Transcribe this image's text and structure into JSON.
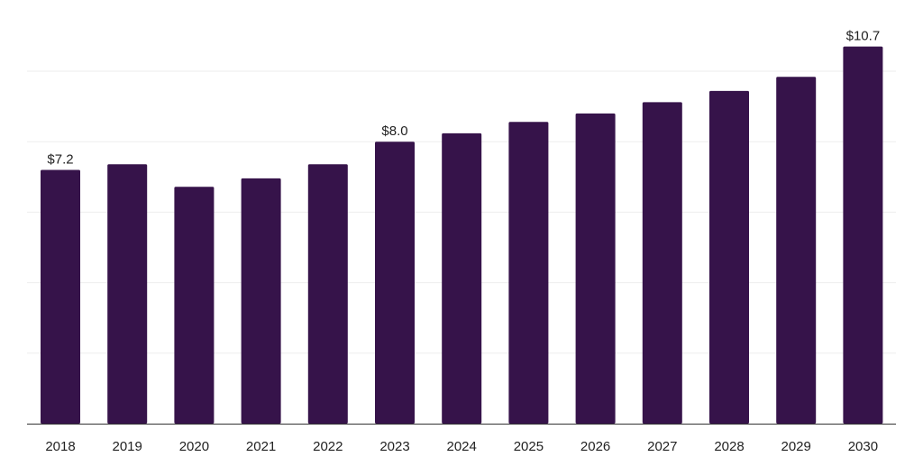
{
  "chart_data": {
    "type": "bar",
    "title": "",
    "xlabel": "",
    "ylabel": "",
    "categories": [
      "2018",
      "2019",
      "2020",
      "2021",
      "2022",
      "2023",
      "2024",
      "2025",
      "2026",
      "2027",
      "2028",
      "2029",
      "2030"
    ],
    "values": [
      7.2,
      7.36,
      6.72,
      6.96,
      7.36,
      8.0,
      8.24,
      8.56,
      8.8,
      9.12,
      9.44,
      9.84,
      10.7
    ],
    "data_labels": [
      {
        "category": "2018",
        "text": "$7.2"
      },
      {
        "category": "2023",
        "text": "$8.0"
      },
      {
        "category": "2030",
        "text": "$10.7"
      }
    ],
    "ylim": [
      0,
      11.8
    ],
    "grid": true,
    "legend": "none",
    "colors": {
      "bar": "#36134a",
      "grid": "#eeeeee",
      "axis": "#333333",
      "text": "#222222"
    }
  }
}
